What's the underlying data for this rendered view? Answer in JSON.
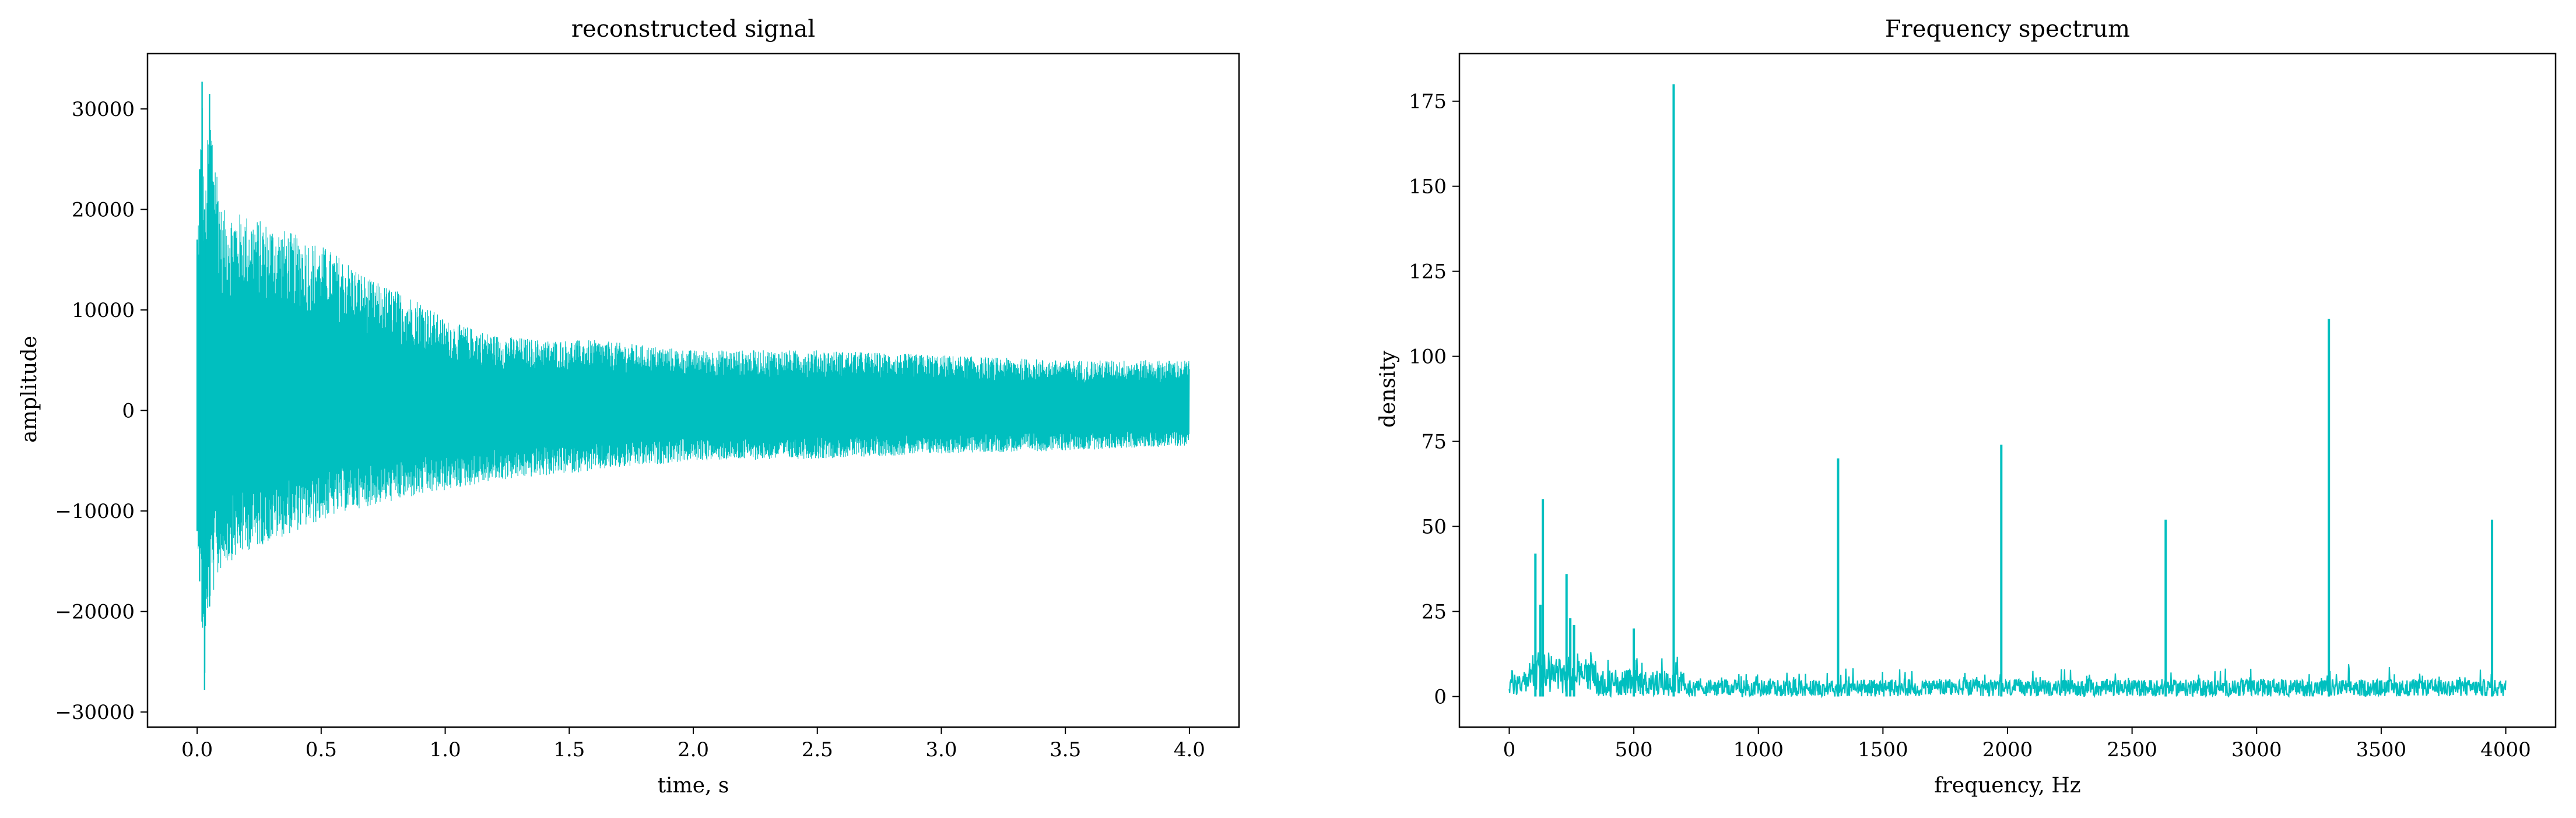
{
  "chart_data": [
    {
      "type": "line",
      "title": "reconstructed signal",
      "xlabel": "time, s",
      "ylabel": "amplitude",
      "xlim": [
        -0.2,
        4.2
      ],
      "ylim": [
        -31500,
        35500
      ],
      "xticks": [
        0.0,
        0.5,
        1.0,
        1.5,
        2.0,
        2.5,
        3.0,
        3.5,
        4.0
      ],
      "xtick_labels": [
        "0.0",
        "0.5",
        "1.0",
        "1.5",
        "2.0",
        "2.5",
        "3.0",
        "3.5",
        "4.0"
      ],
      "yticks": [
        -30000,
        -20000,
        -10000,
        0,
        10000,
        20000,
        30000
      ],
      "ytick_labels": [
        "−30000",
        "−20000",
        "−10000",
        "0",
        "10000",
        "20000",
        "30000"
      ],
      "grid": false,
      "color": "#00BFBF",
      "series": [
        {
          "envelope": {
            "t": [
              0.0,
              0.01,
              0.02,
              0.03,
              0.05,
              0.1,
              0.2,
              0.3,
              0.4,
              0.5,
              0.6,
              0.7,
              0.8,
              0.9,
              1.0,
              1.2,
              1.4,
              1.6,
              1.8,
              2.0,
              2.5,
              3.0,
              3.5,
              4.0
            ],
            "max": [
              17000,
              24000,
              32700,
              20000,
              31500,
              20000,
              19500,
              18500,
              17500,
              16500,
              15000,
              13000,
              12000,
              11000,
              9000,
              7500,
              7000,
              7000,
              6500,
              6000,
              6000,
              5500,
              5000,
              5000
            ],
            "min": [
              -12000,
              -17000,
              -21000,
              -27800,
              -19500,
              -15500,
              -14000,
              -13000,
              -12000,
              -11000,
              -10000,
              -9500,
              -9000,
              -8500,
              -8000,
              -7000,
              -6500,
              -6000,
              -5500,
              -5000,
              -4800,
              -4300,
              -4000,
              -3500
            ]
          }
        }
      ]
    },
    {
      "type": "line",
      "title": "Frequency spectrum",
      "xlabel": "frequency, Hz",
      "ylabel": "density",
      "xlim": [
        -200,
        4200
      ],
      "ylim": [
        -9,
        189
      ],
      "xticks": [
        0,
        500,
        1000,
        1500,
        2000,
        2500,
        3000,
        3500,
        4000
      ],
      "xtick_labels": [
        "0",
        "500",
        "1000",
        "1500",
        "2000",
        "2500",
        "3000",
        "3500",
        "4000"
      ],
      "yticks": [
        0,
        25,
        50,
        75,
        100,
        125,
        150,
        175
      ],
      "ytick_labels": [
        "0",
        "25",
        "50",
        "75",
        "100",
        "125",
        "150",
        "175"
      ],
      "grid": false,
      "color": "#00BFBF",
      "series": [
        {
          "peaks": {
            "x": [
              105,
              125,
              135,
              230,
              245,
              260,
              500,
              660,
              1320,
              1975,
              2635,
              3290,
              3945
            ],
            "y": [
              42,
              27,
              58,
              36,
              23,
              21,
              20,
              180,
              70,
              74,
              52,
              111,
              52
            ]
          }
        }
      ]
    }
  ]
}
